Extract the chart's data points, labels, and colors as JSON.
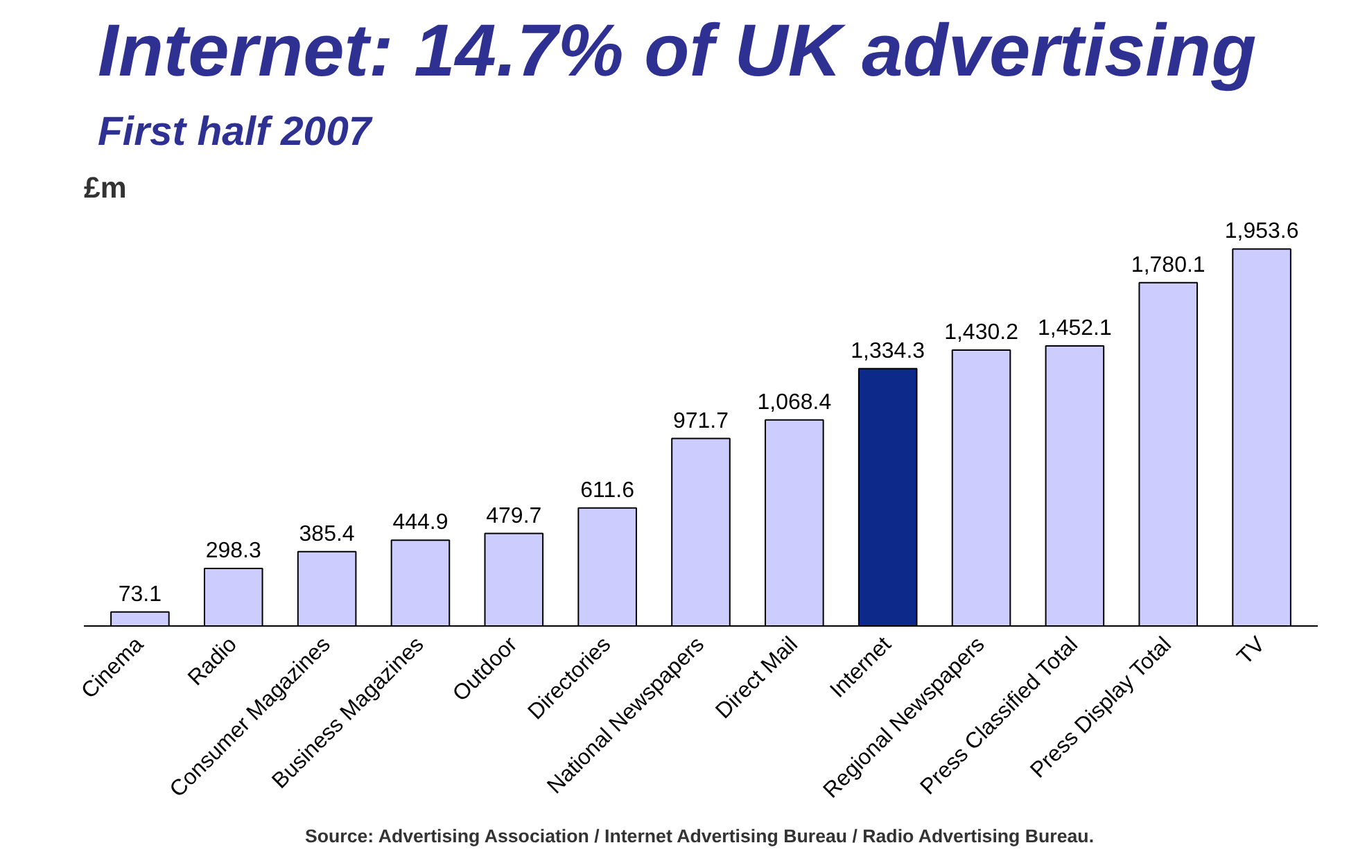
{
  "chart_data": {
    "type": "bar",
    "title": "Internet: 14.7% of UK advertising",
    "subtitle": "First half 2007",
    "ylabel": "£m",
    "categories": [
      "Cinema",
      "Radio",
      "Consumer Magazines",
      "Business Magazines",
      "Outdoor",
      "Directories",
      "National Newspapers",
      "Direct Mail",
      "Internet",
      "Regional Newspapers",
      "Press Classified Total",
      "Press Display Total",
      "TV"
    ],
    "values": [
      73.1,
      298.3,
      385.4,
      444.9,
      479.7,
      611.6,
      971.7,
      1068.4,
      1334.3,
      1430.2,
      1452.1,
      1780.1,
      1953.6
    ],
    "value_labels": [
      "73.1",
      "298.3",
      "385.4",
      "444.9",
      "479.7",
      "611.6",
      "971.7",
      "1,068.4",
      "1,334.3",
      "1,430.2",
      "1,452.1",
      "1,780.1",
      "1,953.6"
    ],
    "colors": [
      "#ccccff",
      "#ccccff",
      "#ccccff",
      "#ccccff",
      "#ccccff",
      "#ccccff",
      "#ccccff",
      "#ccccff",
      "#0d2a8a",
      "#ccccff",
      "#ccccff",
      "#ccccff",
      "#ccccff"
    ],
    "annotations": [
      "Source: Advertising Association / Internet Advertising Bureau / Radio Advertising Bureau."
    ]
  }
}
